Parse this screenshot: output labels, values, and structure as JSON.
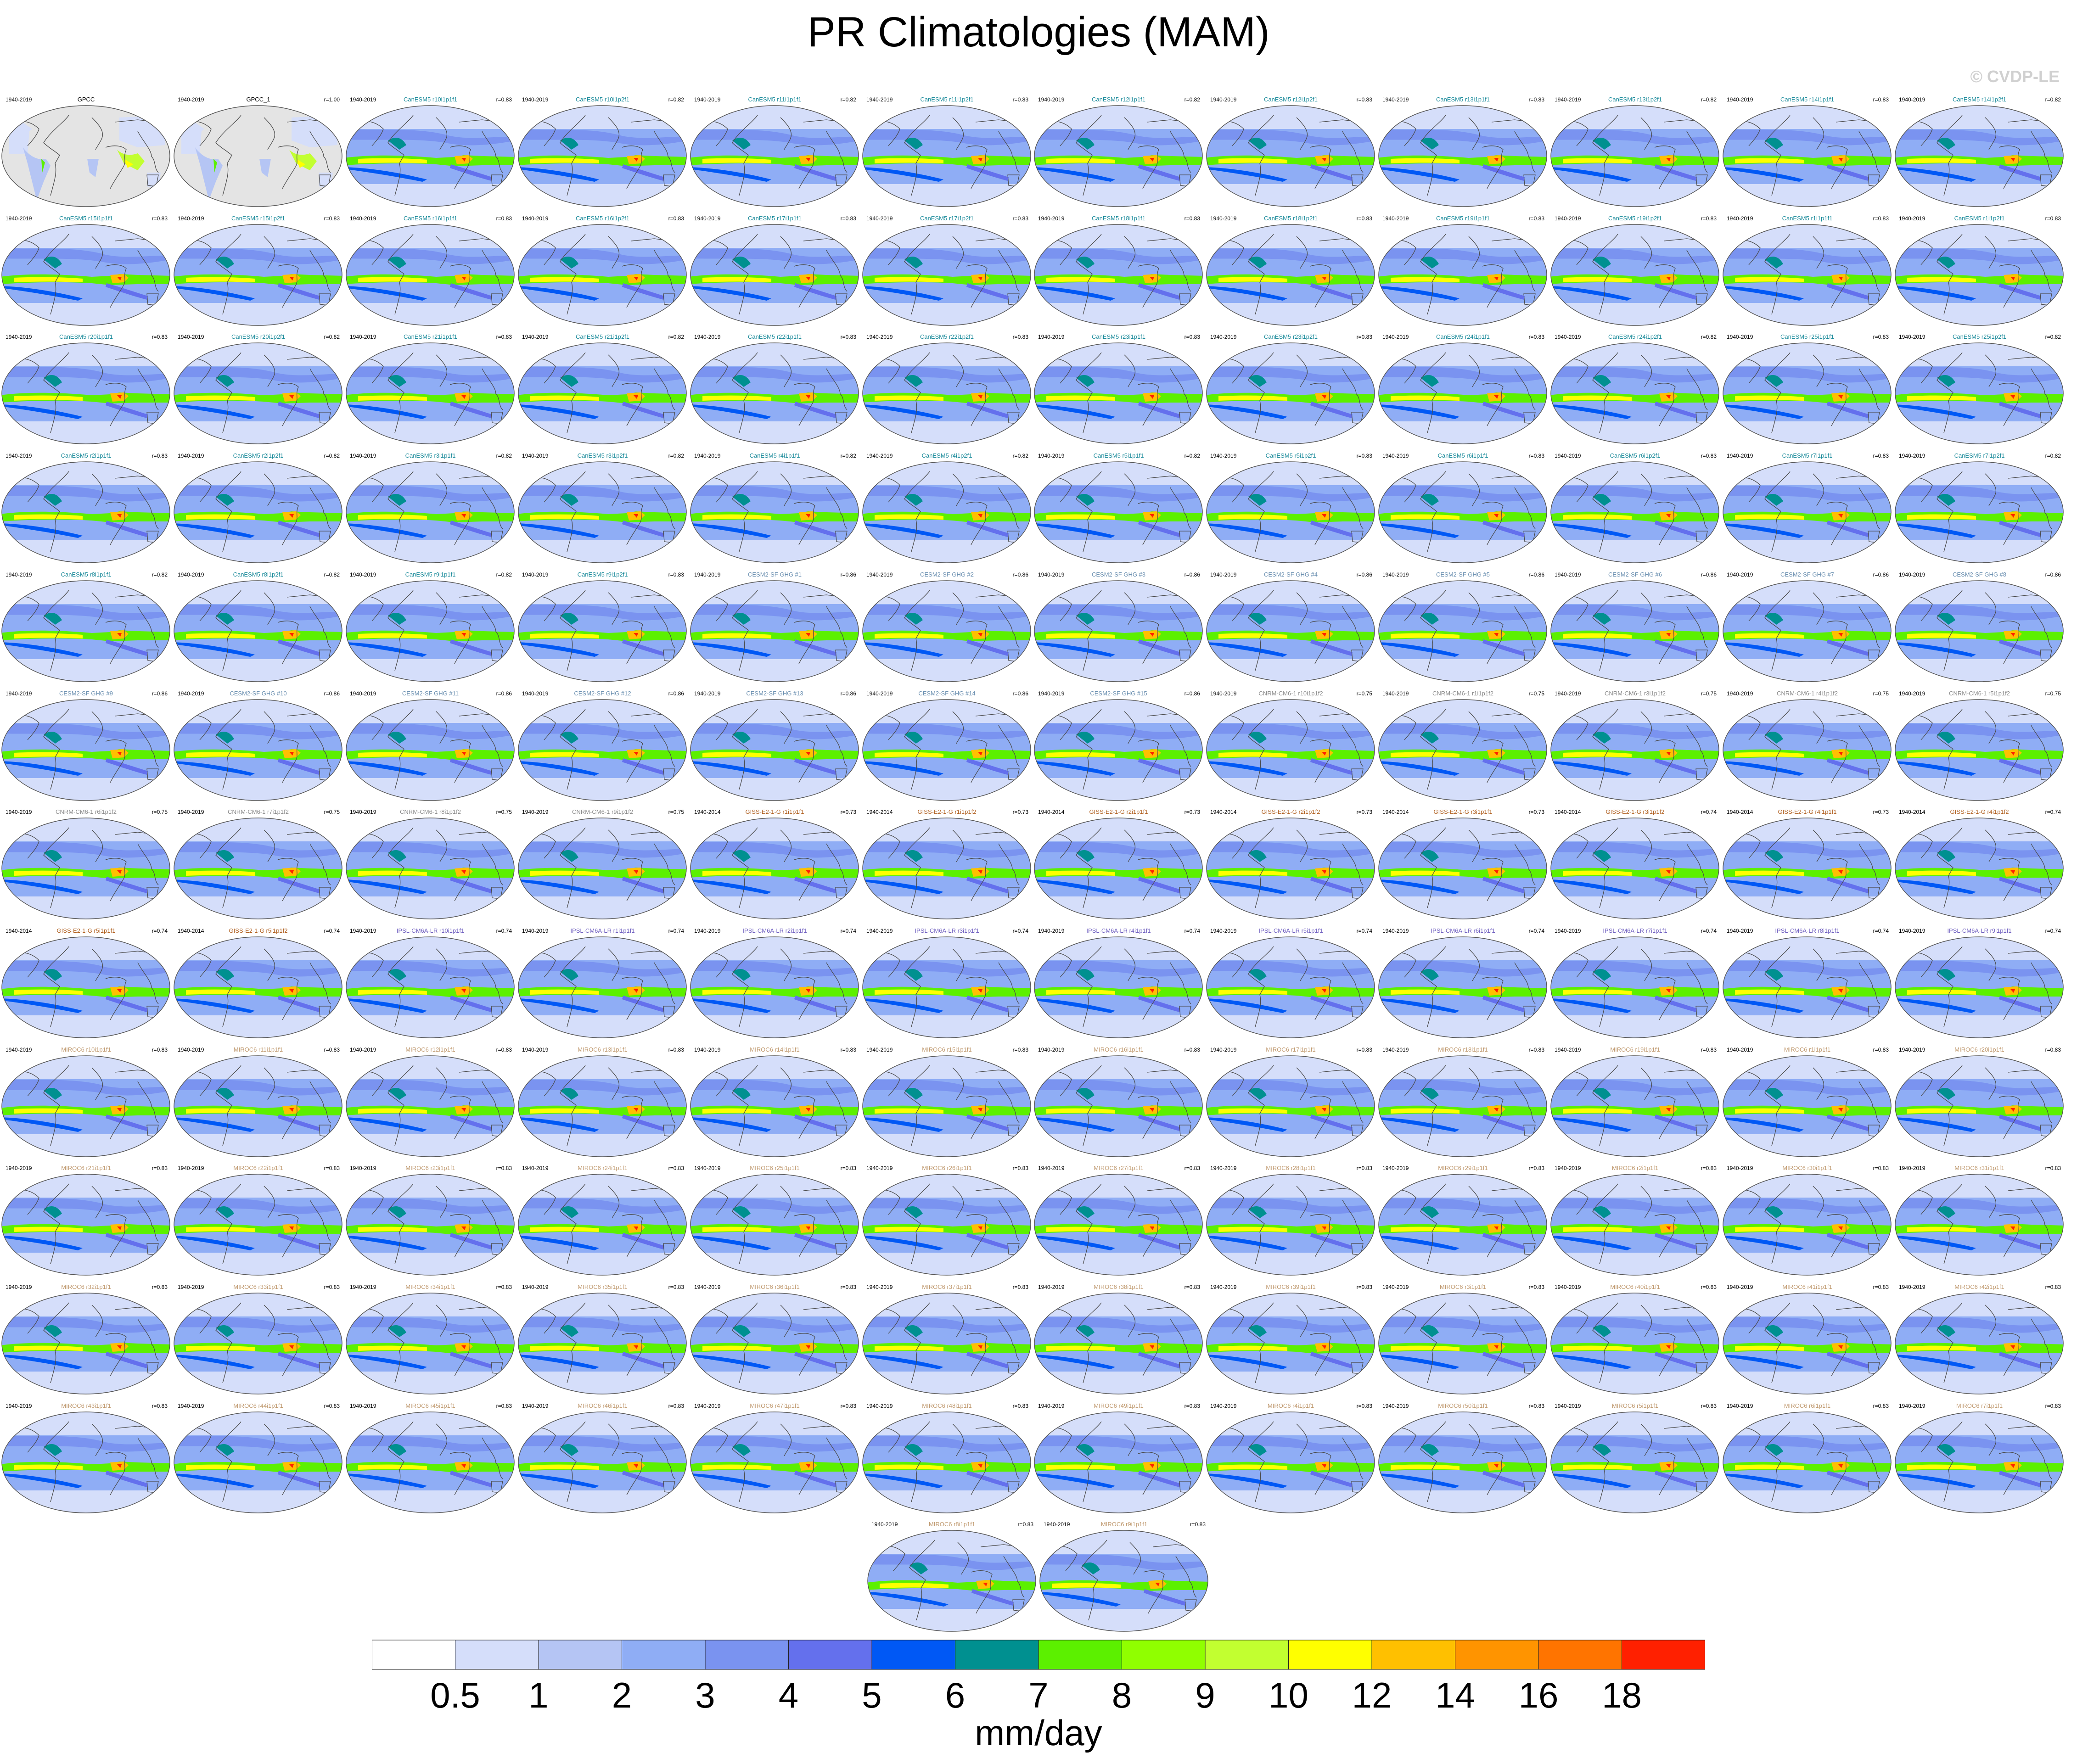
{
  "title": "PR Climatologies (MAM)",
  "watermark": "© CVDP-LE",
  "units": "mm/day",
  "colorbar": {
    "colors": [
      "#ffffff",
      "#d5defa",
      "#b5c5f4",
      "#8fadf5",
      "#7a93f0",
      "#6470ed",
      "#0058f5",
      "#009090",
      "#5cf000",
      "#90ff00",
      "#c2ff30",
      "#ffff00",
      "#ffc000",
      "#ff9400",
      "#ff7400",
      "#ff2000"
    ],
    "labels": [
      "0.5",
      "1",
      "2",
      "3",
      "4",
      "5",
      "6",
      "7",
      "8",
      "9",
      "10",
      "12",
      "14",
      "16",
      "18"
    ]
  },
  "chart_data": {
    "type": "heatmap",
    "title": "PR Climatologies (MAM)",
    "variable": "precipitation rate",
    "season": "MAM",
    "colorbar_levels": [
      0.5,
      1,
      2,
      3,
      4,
      5,
      6,
      7,
      8,
      9,
      10,
      12,
      14,
      16,
      18
    ],
    "units": "mm/day",
    "panels": [
      {
        "title": "GPCC",
        "period": "1940-2019",
        "r": ""
      },
      {
        "title": "GPCC_1",
        "period": "1940-2019",
        "r": "r=1.00"
      },
      {
        "title": "CanESM5 r10i1p1f1",
        "period": "1940-2019",
        "r": "r=0.83"
      },
      {
        "title": "CanESM5 r10i1p2f1",
        "period": "1940-2019",
        "r": "r=0.82"
      },
      {
        "title": "CanESM5 r11i1p1f1",
        "period": "1940-2019",
        "r": "r=0.82"
      },
      {
        "title": "CanESM5 r11i1p2f1",
        "period": "1940-2019",
        "r": "r=0.83"
      },
      {
        "title": "CanESM5 r12i1p1f1",
        "period": "1940-2019",
        "r": "r=0.82"
      },
      {
        "title": "CanESM5 r12i1p2f1",
        "period": "1940-2019",
        "r": "r=0.83"
      },
      {
        "title": "CanESM5 r13i1p1f1",
        "period": "1940-2019",
        "r": "r=0.83"
      },
      {
        "title": "CanESM5 r13i1p2f1",
        "period": "1940-2019",
        "r": "r=0.82"
      },
      {
        "title": "CanESM5 r14i1p1f1",
        "period": "1940-2019",
        "r": "r=0.83"
      },
      {
        "title": "CanESM5 r14i1p2f1",
        "period": "1940-2019",
        "r": "r=0.82"
      },
      {
        "title": "CanESM5 r15i1p1f1",
        "period": "1940-2019",
        "r": "r=0.83"
      },
      {
        "title": "CanESM5 r15i1p2f1",
        "period": "1940-2019",
        "r": "r=0.83"
      },
      {
        "title": "CanESM5 r16i1p1f1",
        "period": "1940-2019",
        "r": "r=0.83"
      },
      {
        "title": "CanESM5 r16i1p2f1",
        "period": "1940-2019",
        "r": "r=0.83"
      },
      {
        "title": "CanESM5 r17i1p1f1",
        "period": "1940-2019",
        "r": "r=0.83"
      },
      {
        "title": "CanESM5 r17i1p2f1",
        "period": "1940-2019",
        "r": "r=0.83"
      },
      {
        "title": "CanESM5 r18i1p1f1",
        "period": "1940-2019",
        "r": "r=0.83"
      },
      {
        "title": "CanESM5 r18i1p2f1",
        "period": "1940-2019",
        "r": "r=0.83"
      },
      {
        "title": "CanESM5 r19i1p1f1",
        "period": "1940-2019",
        "r": "r=0.83"
      },
      {
        "title": "CanESM5 r19i1p2f1",
        "period": "1940-2019",
        "r": "r=0.83"
      },
      {
        "title": "CanESM5 r1i1p1f1",
        "period": "1940-2019",
        "r": "r=0.83"
      },
      {
        "title": "CanESM5 r1i1p2f1",
        "period": "1940-2019",
        "r": "r=0.83"
      },
      {
        "title": "CanESM5 r20i1p1f1",
        "period": "1940-2019",
        "r": "r=0.83"
      },
      {
        "title": "CanESM5 r20i1p2f1",
        "period": "1940-2019",
        "r": "r=0.82"
      },
      {
        "title": "CanESM5 r21i1p1f1",
        "period": "1940-2019",
        "r": "r=0.83"
      },
      {
        "title": "CanESM5 r21i1p2f1",
        "period": "1940-2019",
        "r": "r=0.82"
      },
      {
        "title": "CanESM5 r22i1p1f1",
        "period": "1940-2019",
        "r": "r=0.83"
      },
      {
        "title": "CanESM5 r22i1p2f1",
        "period": "1940-2019",
        "r": "r=0.83"
      },
      {
        "title": "CanESM5 r23i1p1f1",
        "period": "1940-2019",
        "r": "r=0.83"
      },
      {
        "title": "CanESM5 r23i1p2f1",
        "period": "1940-2019",
        "r": "r=0.83"
      },
      {
        "title": "CanESM5 r24i1p1f1",
        "period": "1940-2019",
        "r": "r=0.83"
      },
      {
        "title": "CanESM5 r24i1p2f1",
        "period": "1940-2019",
        "r": "r=0.82"
      },
      {
        "title": "CanESM5 r25i1p1f1",
        "period": "1940-2019",
        "r": "r=0.83"
      },
      {
        "title": "CanESM5 r25i1p2f1",
        "period": "1940-2019",
        "r": "r=0.82"
      },
      {
        "title": "CanESM5 r2i1p1f1",
        "period": "1940-2019",
        "r": "r=0.83"
      },
      {
        "title": "CanESM5 r2i1p2f1",
        "period": "1940-2019",
        "r": "r=0.82"
      },
      {
        "title": "CanESM5 r3i1p1f1",
        "period": "1940-2019",
        "r": "r=0.82"
      },
      {
        "title": "CanESM5 r3i1p2f1",
        "period": "1940-2019",
        "r": "r=0.82"
      },
      {
        "title": "CanESM5 r4i1p1f1",
        "period": "1940-2019",
        "r": "r=0.82"
      },
      {
        "title": "CanESM5 r4i1p2f1",
        "period": "1940-2019",
        "r": "r=0.82"
      },
      {
        "title": "CanESM5 r5i1p1f1",
        "period": "1940-2019",
        "r": "r=0.82"
      },
      {
        "title": "CanESM5 r5i1p2f1",
        "period": "1940-2019",
        "r": "r=0.83"
      },
      {
        "title": "CanESM5 r6i1p1f1",
        "period": "1940-2019",
        "r": "r=0.83"
      },
      {
        "title": "CanESM5 r6i1p2f1",
        "period": "1940-2019",
        "r": "r=0.83"
      },
      {
        "title": "CanESM5 r7i1p1f1",
        "period": "1940-2019",
        "r": "r=0.83"
      },
      {
        "title": "CanESM5 r7i1p2f1",
        "period": "1940-2019",
        "r": "r=0.82"
      },
      {
        "title": "CanESM5 r8i1p1f1",
        "period": "1940-2019",
        "r": "r=0.82"
      },
      {
        "title": "CanESM5 r8i1p2f1",
        "period": "1940-2019",
        "r": "r=0.82"
      },
      {
        "title": "CanESM5 r9i1p1f1",
        "period": "1940-2019",
        "r": "r=0.82"
      },
      {
        "title": "CanESM5 r9i1p2f1",
        "period": "1940-2019",
        "r": "r=0.83"
      },
      {
        "title": "CESM2-SF GHG #1",
        "period": "1940-2019",
        "r": "r=0.86"
      },
      {
        "title": "CESM2-SF GHG #2",
        "period": "1940-2019",
        "r": "r=0.86"
      },
      {
        "title": "CESM2-SF GHG #3",
        "period": "1940-2019",
        "r": "r=0.86"
      },
      {
        "title": "CESM2-SF GHG #4",
        "period": "1940-2019",
        "r": "r=0.86"
      },
      {
        "title": "CESM2-SF GHG #5",
        "period": "1940-2019",
        "r": "r=0.86"
      },
      {
        "title": "CESM2-SF GHG #6",
        "period": "1940-2019",
        "r": "r=0.86"
      },
      {
        "title": "CESM2-SF GHG #7",
        "period": "1940-2019",
        "r": "r=0.86"
      },
      {
        "title": "CESM2-SF GHG #8",
        "period": "1940-2019",
        "r": "r=0.86"
      },
      {
        "title": "CESM2-SF GHG #9",
        "period": "1940-2019",
        "r": "r=0.86"
      },
      {
        "title": "CESM2-SF GHG #10",
        "period": "1940-2019",
        "r": "r=0.86"
      },
      {
        "title": "CESM2-SF GHG #11",
        "period": "1940-2019",
        "r": "r=0.86"
      },
      {
        "title": "CESM2-SF GHG #12",
        "period": "1940-2019",
        "r": "r=0.86"
      },
      {
        "title": "CESM2-SF GHG #13",
        "period": "1940-2019",
        "r": "r=0.86"
      },
      {
        "title": "CESM2-SF GHG #14",
        "period": "1940-2019",
        "r": "r=0.86"
      },
      {
        "title": "CESM2-SF GHG #15",
        "period": "1940-2019",
        "r": "r=0.86"
      },
      {
        "title": "CNRM-CM6-1 r10i1p1f2",
        "period": "1940-2019",
        "r": "r=0.75"
      },
      {
        "title": "CNRM-CM6-1 r1i1p1f2",
        "period": "1940-2019",
        "r": "r=0.75"
      },
      {
        "title": "CNRM-CM6-1 r3i1p1f2",
        "period": "1940-2019",
        "r": "r=0.75"
      },
      {
        "title": "CNRM-CM6-1 r4i1p1f2",
        "period": "1940-2019",
        "r": "r=0.75"
      },
      {
        "title": "CNRM-CM6-1 r5i1p1f2",
        "period": "1940-2019",
        "r": "r=0.75"
      },
      {
        "title": "CNRM-CM6-1 r6i1p1f2",
        "period": "1940-2019",
        "r": "r=0.75"
      },
      {
        "title": "CNRM-CM6-1 r7i1p1f2",
        "period": "1940-2019",
        "r": "r=0.75"
      },
      {
        "title": "CNRM-CM6-1 r8i1p1f2",
        "period": "1940-2019",
        "r": "r=0.75"
      },
      {
        "title": "CNRM-CM6-1 r9i1p1f2",
        "period": "1940-2019",
        "r": "r=0.75"
      },
      {
        "title": "GISS-E2-1-G r1i1p1f1",
        "period": "1940-2014",
        "r": "r=0.73"
      },
      {
        "title": "GISS-E2-1-G r1i1p1f2",
        "period": "1940-2014",
        "r": "r=0.73"
      },
      {
        "title": "GISS-E2-1-G r2i1p1f1",
        "period": "1940-2014",
        "r": "r=0.73"
      },
      {
        "title": "GISS-E2-1-G r2i1p1f2",
        "period": "1940-2014",
        "r": "r=0.73"
      },
      {
        "title": "GISS-E2-1-G r3i1p1f1",
        "period": "1940-2014",
        "r": "r=0.73"
      },
      {
        "title": "GISS-E2-1-G r3i1p1f2",
        "period": "1940-2014",
        "r": "r=0.74"
      },
      {
        "title": "GISS-E2-1-G r4i1p1f1",
        "period": "1940-2014",
        "r": "r=0.73"
      },
      {
        "title": "GISS-E2-1-G r4i1p1f2",
        "period": "1940-2014",
        "r": "r=0.74"
      },
      {
        "title": "GISS-E2-1-G r5i1p1f1",
        "period": "1940-2014",
        "r": "r=0.74"
      },
      {
        "title": "GISS-E2-1-G r5i1p1f2",
        "period": "1940-2014",
        "r": "r=0.74"
      },
      {
        "title": "IPSL-CM6A-LR r10i1p1f1",
        "period": "1940-2019",
        "r": "r=0.74"
      },
      {
        "title": "IPSL-CM6A-LR r1i1p1f1",
        "period": "1940-2019",
        "r": "r=0.74"
      },
      {
        "title": "IPSL-CM6A-LR r2i1p1f1",
        "period": "1940-2019",
        "r": "r=0.74"
      },
      {
        "title": "IPSL-CM6A-LR r3i1p1f1",
        "period": "1940-2019",
        "r": "r=0.74"
      },
      {
        "title": "IPSL-CM6A-LR r4i1p1f1",
        "period": "1940-2019",
        "r": "r=0.74"
      },
      {
        "title": "IPSL-CM6A-LR r5i1p1f1",
        "period": "1940-2019",
        "r": "r=0.74"
      },
      {
        "title": "IPSL-CM6A-LR r6i1p1f1",
        "period": "1940-2019",
        "r": "r=0.74"
      },
      {
        "title": "IPSL-CM6A-LR r7i1p1f1",
        "period": "1940-2019",
        "r": "r=0.74"
      },
      {
        "title": "IPSL-CM6A-LR r8i1p1f1",
        "period": "1940-2019",
        "r": "r=0.74"
      },
      {
        "title": "IPSL-CM6A-LR r9i1p1f1",
        "period": "1940-2019",
        "r": "r=0.74"
      },
      {
        "title": "MIROC6 r10i1p1f1",
        "period": "1940-2019",
        "r": "r=0.83"
      },
      {
        "title": "MIROC6 r11i1p1f1",
        "period": "1940-2019",
        "r": "r=0.83"
      },
      {
        "title": "MIROC6 r12i1p1f1",
        "period": "1940-2019",
        "r": "r=0.83"
      },
      {
        "title": "MIROC6 r13i1p1f1",
        "period": "1940-2019",
        "r": "r=0.83"
      },
      {
        "title": "MIROC6 r14i1p1f1",
        "period": "1940-2019",
        "r": "r=0.83"
      },
      {
        "title": "MIROC6 r15i1p1f1",
        "period": "1940-2019",
        "r": "r=0.83"
      },
      {
        "title": "MIROC6 r16i1p1f1",
        "period": "1940-2019",
        "r": "r=0.83"
      },
      {
        "title": "MIROC6 r17i1p1f1",
        "period": "1940-2019",
        "r": "r=0.83"
      },
      {
        "title": "MIROC6 r18i1p1f1",
        "period": "1940-2019",
        "r": "r=0.83"
      },
      {
        "title": "MIROC6 r19i1p1f1",
        "period": "1940-2019",
        "r": "r=0.83"
      },
      {
        "title": "MIROC6 r1i1p1f1",
        "period": "1940-2019",
        "r": "r=0.83"
      },
      {
        "title": "MIROC6 r20i1p1f1",
        "period": "1940-2019",
        "r": "r=0.83"
      },
      {
        "title": "MIROC6 r21i1p1f1",
        "period": "1940-2019",
        "r": "r=0.83"
      },
      {
        "title": "MIROC6 r22i1p1f1",
        "period": "1940-2019",
        "r": "r=0.83"
      },
      {
        "title": "MIROC6 r23i1p1f1",
        "period": "1940-2019",
        "r": "r=0.83"
      },
      {
        "title": "MIROC6 r24i1p1f1",
        "period": "1940-2019",
        "r": "r=0.83"
      },
      {
        "title": "MIROC6 r25i1p1f1",
        "period": "1940-2019",
        "r": "r=0.83"
      },
      {
        "title": "MIROC6 r26i1p1f1",
        "period": "1940-2019",
        "r": "r=0.83"
      },
      {
        "title": "MIROC6 r27i1p1f1",
        "period": "1940-2019",
        "r": "r=0.83"
      },
      {
        "title": "MIROC6 r28i1p1f1",
        "period": "1940-2019",
        "r": "r=0.83"
      },
      {
        "title": "MIROC6 r29i1p1f1",
        "period": "1940-2019",
        "r": "r=0.83"
      },
      {
        "title": "MIROC6 r2i1p1f1",
        "period": "1940-2019",
        "r": "r=0.83"
      },
      {
        "title": "MIROC6 r30i1p1f1",
        "period": "1940-2019",
        "r": "r=0.83"
      },
      {
        "title": "MIROC6 r31i1p1f1",
        "period": "1940-2019",
        "r": "r=0.83"
      },
      {
        "title": "MIROC6 r32i1p1f1",
        "period": "1940-2019",
        "r": "r=0.83"
      },
      {
        "title": "MIROC6 r33i1p1f1",
        "period": "1940-2019",
        "r": "r=0.83"
      },
      {
        "title": "MIROC6 r34i1p1f1",
        "period": "1940-2019",
        "r": "r=0.83"
      },
      {
        "title": "MIROC6 r35i1p1f1",
        "period": "1940-2019",
        "r": "r=0.83"
      },
      {
        "title": "MIROC6 r36i1p1f1",
        "period": "1940-2019",
        "r": "r=0.83"
      },
      {
        "title": "MIROC6 r37i1p1f1",
        "period": "1940-2019",
        "r": "r=0.83"
      },
      {
        "title": "MIROC6 r38i1p1f1",
        "period": "1940-2019",
        "r": "r=0.83"
      },
      {
        "title": "MIROC6 r39i1p1f1",
        "period": "1940-2019",
        "r": "r=0.83"
      },
      {
        "title": "MIROC6 r3i1p1f1",
        "period": "1940-2019",
        "r": "r=0.83"
      },
      {
        "title": "MIROC6 r40i1p1f1",
        "period": "1940-2019",
        "r": "r=0.83"
      },
      {
        "title": "MIROC6 r41i1p1f1",
        "period": "1940-2019",
        "r": "r=0.83"
      },
      {
        "title": "MIROC6 r42i1p1f1",
        "period": "1940-2019",
        "r": "r=0.83"
      },
      {
        "title": "MIROC6 r43i1p1f1",
        "period": "1940-2019",
        "r": "r=0.83"
      },
      {
        "title": "MIROC6 r44i1p1f1",
        "period": "1940-2019",
        "r": "r=0.83"
      },
      {
        "title": "MIROC6 r45i1p1f1",
        "period": "1940-2019",
        "r": "r=0.83"
      },
      {
        "title": "MIROC6 r46i1p1f1",
        "period": "1940-2019",
        "r": "r=0.83"
      },
      {
        "title": "MIROC6 r47i1p1f1",
        "period": "1940-2019",
        "r": "r=0.83"
      },
      {
        "title": "MIROC6 r48i1p1f1",
        "period": "1940-2019",
        "r": "r=0.83"
      },
      {
        "title": "MIROC6 r49i1p1f1",
        "period": "1940-2019",
        "r": "r=0.83"
      },
      {
        "title": "MIROC6 r4i1p1f1",
        "period": "1940-2019",
        "r": "r=0.83"
      },
      {
        "title": "MIROC6 r50i1p1f1",
        "period": "1940-2019",
        "r": "r=0.83"
      },
      {
        "title": "MIROC6 r5i1p1f1",
        "period": "1940-2019",
        "r": "r=0.83"
      },
      {
        "title": "MIROC6 r6i1p1f1",
        "period": "1940-2019",
        "r": "r=0.83"
      },
      {
        "title": "MIROC6 r7i1p1f1",
        "period": "1940-2019",
        "r": "r=0.83"
      },
      {
        "title": "MIROC6 r8i1p1f1",
        "period": "1940-2019",
        "r": "r=0.83"
      },
      {
        "title": "MIROC6 r9i1p1f1",
        "period": "1940-2019",
        "r": "r=0.83"
      }
    ]
  }
}
